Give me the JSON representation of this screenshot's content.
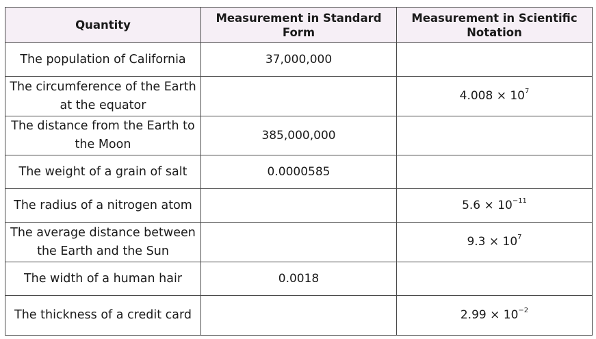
{
  "table": {
    "headers": [
      "Quantity",
      "Measurement in Standard Form",
      "Measurement in Scientific Notation"
    ],
    "rows": [
      {
        "quantity": "The population of California",
        "standard": "37,000,000",
        "sci_base": "",
        "sci_exp": ""
      },
      {
        "quantity": "The circumference of the Earth at the equator",
        "standard": "",
        "sci_base": "4.008 × 10",
        "sci_exp": "7"
      },
      {
        "quantity": "The distance from the Earth to the Moon",
        "standard": "385,000,000",
        "sci_base": "",
        "sci_exp": ""
      },
      {
        "quantity": "The weight of a grain of salt",
        "standard": "0.0000585",
        "sci_base": "",
        "sci_exp": ""
      },
      {
        "quantity": "The radius of a nitrogen atom",
        "standard": "",
        "sci_base": "5.6 × 10",
        "sci_exp": "−11"
      },
      {
        "quantity": "The average distance between the Earth and the Sun",
        "standard": "",
        "sci_base": "9.3 × 10",
        "sci_exp": "7"
      },
      {
        "quantity": "The width of a human hair",
        "standard": "0.0018",
        "sci_base": "",
        "sci_exp": ""
      },
      {
        "quantity": "The thickness of a credit card",
        "standard": "",
        "sci_base": "2.99 × 10",
        "sci_exp": "−2"
      }
    ]
  }
}
